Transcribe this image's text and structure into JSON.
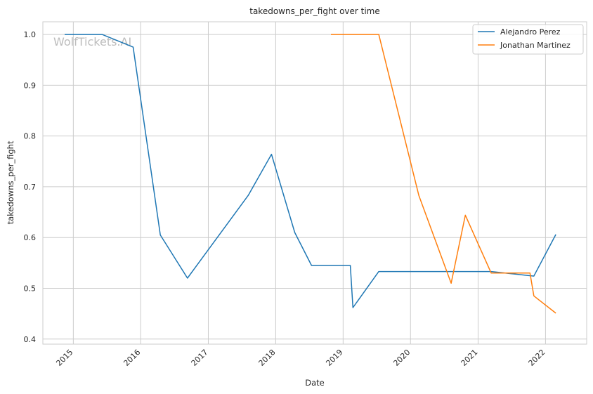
{
  "chart_data": {
    "type": "line",
    "title": "takedowns_per_fight over time",
    "xlabel": "Date",
    "ylabel": "takedowns_per_fight",
    "watermark": "WolfTickets.AI",
    "xlim": [
      "2014-07-20",
      "2022-08-12"
    ],
    "ylim": [
      0.39,
      1.025
    ],
    "x_ticks": [
      {
        "label": "2015",
        "date": "2015-01-01"
      },
      {
        "label": "2016",
        "date": "2016-01-01"
      },
      {
        "label": "2017",
        "date": "2017-01-01"
      },
      {
        "label": "2018",
        "date": "2018-01-01"
      },
      {
        "label": "2019",
        "date": "2019-01-01"
      },
      {
        "label": "2020",
        "date": "2020-01-01"
      },
      {
        "label": "2021",
        "date": "2021-01-01"
      },
      {
        "label": "2022",
        "date": "2022-01-01"
      }
    ],
    "y_ticks": [
      {
        "label": "0.4",
        "value": 0.4
      },
      {
        "label": "0.5",
        "value": 0.5
      },
      {
        "label": "0.6",
        "value": 0.6
      },
      {
        "label": "0.7",
        "value": 0.7
      },
      {
        "label": "0.8",
        "value": 0.8
      },
      {
        "label": "0.9",
        "value": 0.9
      },
      {
        "label": "1.0",
        "value": 1.0
      }
    ],
    "grid": true,
    "legend_position": "top-right",
    "series": [
      {
        "name": "Alejandro Perez",
        "color": "#1f77b4",
        "points": [
          {
            "x": "2014-11-15",
            "y": 1.0
          },
          {
            "x": "2015-06-06",
            "y": 1.0
          },
          {
            "x": "2015-11-21",
            "y": 0.975
          },
          {
            "x": "2016-04-16",
            "y": 0.605
          },
          {
            "x": "2016-09-10",
            "y": 0.52
          },
          {
            "x": "2017-08-05",
            "y": 0.683
          },
          {
            "x": "2017-12-09",
            "y": 0.764
          },
          {
            "x": "2018-04-14",
            "y": 0.61
          },
          {
            "x": "2018-07-14",
            "y": 0.545
          },
          {
            "x": "2019-02-09",
            "y": 0.545
          },
          {
            "x": "2019-02-23",
            "y": 0.462
          },
          {
            "x": "2019-07-13",
            "y": 0.533
          },
          {
            "x": "2021-03-13",
            "y": 0.533
          },
          {
            "x": "2021-10-30",
            "y": 0.524
          },
          {
            "x": "2022-02-26",
            "y": 0.606
          }
        ]
      },
      {
        "name": "Jonathan Martinez",
        "color": "#ff7f0e",
        "points": [
          {
            "x": "2018-10-27",
            "y": 1.0
          },
          {
            "x": "2019-07-13",
            "y": 1.0
          },
          {
            "x": "2020-02-15",
            "y": 0.683
          },
          {
            "x": "2020-08-08",
            "y": 0.51
          },
          {
            "x": "2020-10-24",
            "y": 0.644
          },
          {
            "x": "2021-03-13",
            "y": 0.53
          },
          {
            "x": "2021-10-09",
            "y": 0.53
          },
          {
            "x": "2021-10-30",
            "y": 0.485
          },
          {
            "x": "2022-02-26",
            "y": 0.451
          }
        ]
      }
    ]
  }
}
